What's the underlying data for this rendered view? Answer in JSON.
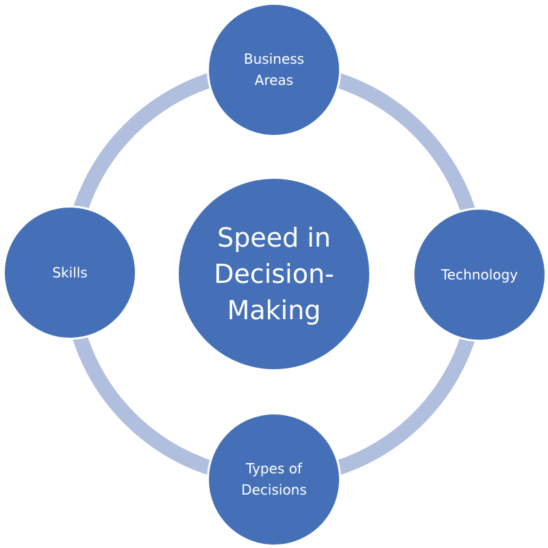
{
  "diagram": {
    "center": {
      "label": "Speed in\nDecision-\nMaking"
    },
    "nodes": {
      "top": {
        "label": "Business\nAreas"
      },
      "right": {
        "label": "Technology"
      },
      "bottom": {
        "label": "Types of\nDecisions"
      },
      "left": {
        "label": "Skills"
      }
    }
  },
  "colors": {
    "node_fill": "#4570b8",
    "ring": "#b1bfdf",
    "text": "#ffffff",
    "background": "#ffffff"
  }
}
